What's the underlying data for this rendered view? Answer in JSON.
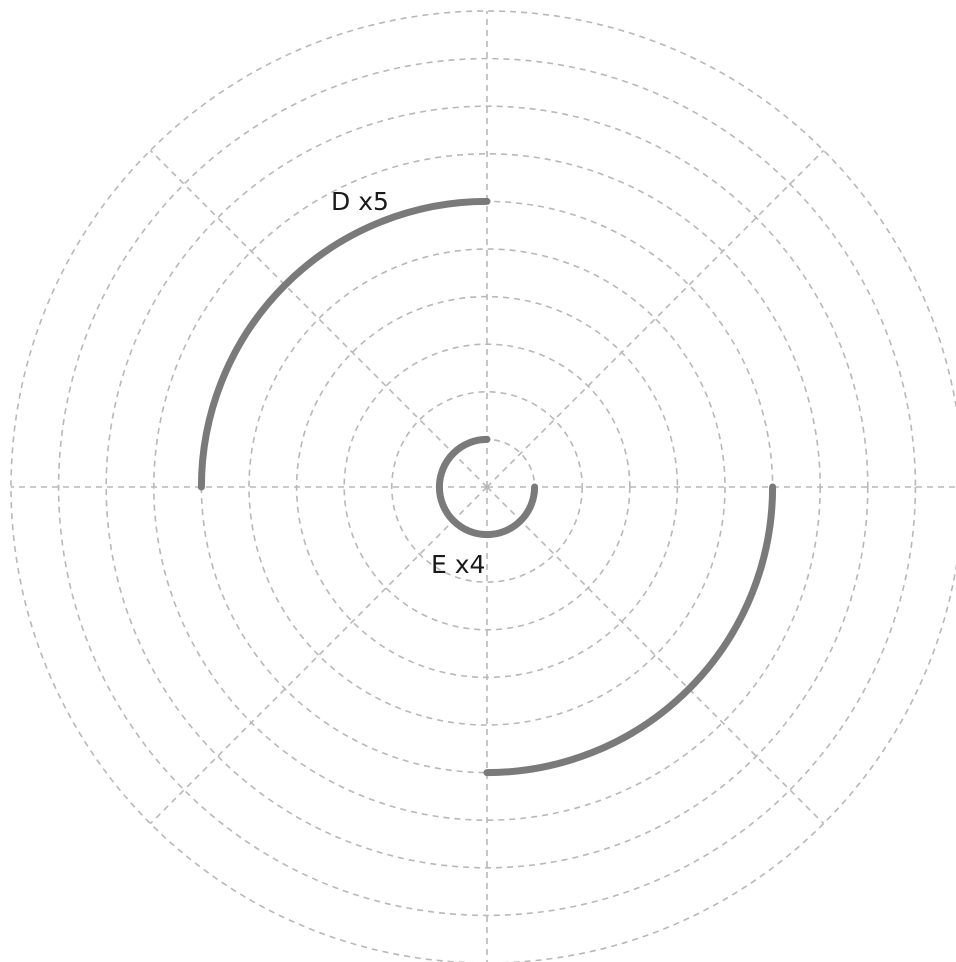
{
  "diagram": {
    "type": "polar-arc-diagram",
    "grid": {
      "ring_count": 10,
      "spoke_count": 8,
      "line_color": "#b8b8b8",
      "dashed": true
    },
    "arc_color": "#7a7a7a",
    "arcs": [
      {
        "label": "D x5",
        "ring": 6,
        "start_deg": 180,
        "sweep_deg": 90,
        "mirror_ring": 6,
        "mirror_start_deg": 0,
        "mirror_sweep_deg": -90
      },
      {
        "label": "E x4",
        "ring": 1,
        "start_deg": 0,
        "sweep_deg": 270
      }
    ]
  }
}
